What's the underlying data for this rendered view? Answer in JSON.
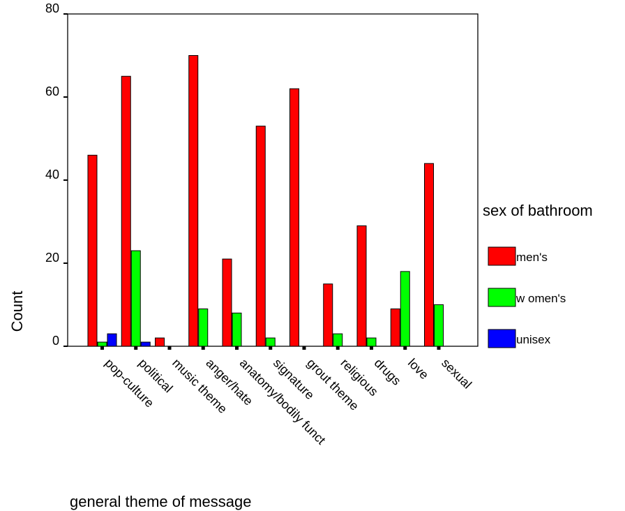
{
  "chart_data": {
    "type": "bar",
    "xlabel": "general theme of message",
    "ylabel": "Count",
    "ylim": [
      0,
      80
    ],
    "yticks": [
      0,
      20,
      40,
      60,
      80
    ],
    "grid": false,
    "legend_position": "right",
    "legend_title": "sex of bathroom",
    "categories": [
      "pop-culture",
      "political",
      "music theme",
      "anger/hate",
      "anatomy/bodily funct",
      "signature",
      "grout theme",
      "religious",
      "drugs",
      "love",
      "sexual"
    ],
    "series": [
      {
        "name": "men's",
        "color": "#ff0000",
        "values": [
          46,
          65,
          2,
          70,
          21,
          53,
          62,
          15,
          29,
          9,
          44
        ]
      },
      {
        "name": "w omen's",
        "color": "#00ff00",
        "values": [
          1,
          23,
          0,
          9,
          8,
          2,
          0,
          3,
          2,
          18,
          10
        ]
      },
      {
        "name": "unisex",
        "color": "#0000ff",
        "values": [
          3,
          1,
          0,
          0,
          0,
          0,
          0,
          0,
          0,
          0,
          0
        ]
      }
    ]
  }
}
